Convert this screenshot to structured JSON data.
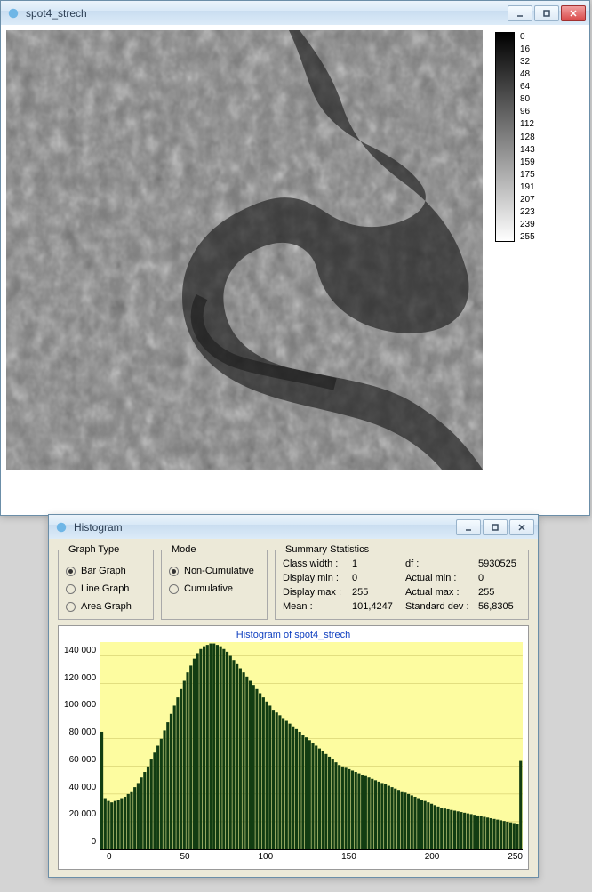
{
  "viewer": {
    "title": "spot4_strech",
    "gradient_labels": [
      "0",
      "16",
      "32",
      "48",
      "64",
      "80",
      "96",
      "112",
      "128",
      "143",
      "159",
      "175",
      "191",
      "207",
      "223",
      "239",
      "255"
    ]
  },
  "histogram_window": {
    "title": "Histogram",
    "graph_type": {
      "legend": "Graph Type",
      "options": [
        "Bar Graph",
        "Line Graph",
        "Area Graph"
      ],
      "selected": 0
    },
    "mode": {
      "legend": "Mode",
      "options": [
        "Non-Cumulative",
        "Cumulative"
      ],
      "selected": 0
    },
    "stats": {
      "legend": "Summary Statistics",
      "rows": [
        {
          "l1": "Class width :",
          "v1": "1",
          "l2": "df :",
          "v2": "5930525"
        },
        {
          "l1": "Display min :",
          "v1": "0",
          "l2": "Actual min :",
          "v2": "0"
        },
        {
          "l1": "Display max :",
          "v1": "255",
          "l2": "Actual max :",
          "v2": "255"
        },
        {
          "l1": "Mean :",
          "v1": "101,4247",
          "l2": "Standard dev :",
          "v2": "56,8305"
        }
      ]
    },
    "chart": {
      "type": "bar",
      "title": "Histogram of spot4_strech",
      "bar_color": "#123d12",
      "background_color": "#fdfca0",
      "ylim": [
        0,
        150000
      ],
      "ytick_step": 20000,
      "ytick_labels": [
        "0",
        "20 000",
        "40 000",
        "60 000",
        "80 000",
        "100 000",
        "120 000",
        "140 000"
      ],
      "xlim": [
        0,
        255
      ],
      "xtick_step": 50,
      "xtick_labels": [
        "0",
        "50",
        "100",
        "150",
        "200",
        "250"
      ],
      "values": [
        85000,
        37000,
        35000,
        34000,
        35000,
        36000,
        37000,
        38000,
        40000,
        42000,
        45000,
        48000,
        52000,
        56000,
        60000,
        65000,
        70000,
        75000,
        80000,
        86000,
        92000,
        98000,
        104000,
        110000,
        116000,
        122000,
        128000,
        133000,
        138000,
        142000,
        145000,
        147000,
        148000,
        149000,
        149000,
        148000,
        147000,
        145000,
        143000,
        140000,
        137000,
        134000,
        131000,
        128000,
        125000,
        122000,
        119000,
        116000,
        113000,
        110000,
        107000,
        104000,
        101000,
        99000,
        97000,
        95000,
        93000,
        91000,
        89000,
        87000,
        85000,
        83000,
        81000,
        79000,
        77000,
        75000,
        73000,
        71000,
        69000,
        67000,
        65000,
        63000,
        61000,
        60000,
        59000,
        58000,
        57000,
        56000,
        55000,
        54000,
        53000,
        52000,
        51000,
        50000,
        49000,
        48000,
        47000,
        46000,
        45000,
        44000,
        43000,
        42000,
        41000,
        40000,
        39000,
        38000,
        37000,
        36000,
        35000,
        34000,
        33000,
        32000,
        31000,
        30000,
        29500,
        29000,
        28500,
        28000,
        27500,
        27000,
        26500,
        26000,
        25500,
        25000,
        24500,
        24000,
        23500,
        23000,
        22500,
        22000,
        21500,
        21000,
        20500,
        20000,
        19500,
        19000,
        18500,
        64000
      ]
    }
  }
}
